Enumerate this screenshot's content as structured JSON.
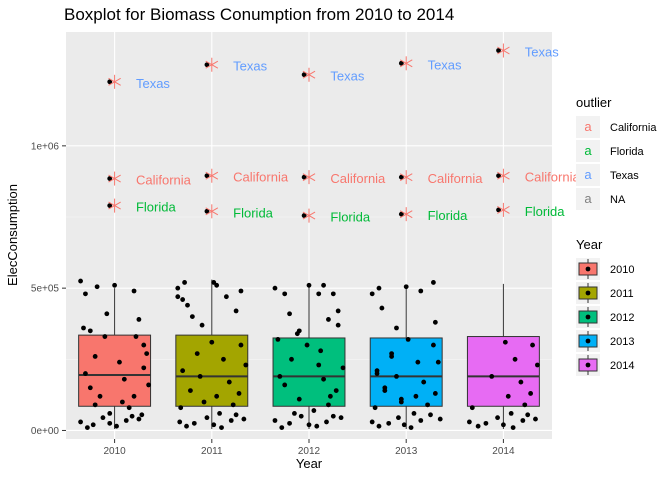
{
  "chart_data": {
    "type": "boxplot",
    "title": "Boxplot for Biomass Conumption from 2010 to 2014",
    "xlabel": "Year",
    "ylabel": "ElecConsumption",
    "categories": [
      "2010",
      "2011",
      "2012",
      "2013",
      "2014"
    ],
    "ylim": [
      -30000,
      1400000
    ],
    "yticks": [
      {
        "value": 0,
        "label": "0e+00"
      },
      {
        "value": 500000,
        "label": "5e+05"
      },
      {
        "value": 1000000,
        "label": "1e+06"
      }
    ],
    "fill_legend": {
      "title": "Year",
      "entries": [
        {
          "label": "2010",
          "color": "#F8766D"
        },
        {
          "label": "2011",
          "color": "#A3A500"
        },
        {
          "label": "2012",
          "color": "#00BF7D"
        },
        {
          "label": "2013",
          "color": "#00B0F6"
        },
        {
          "label": "2014",
          "color": "#E76BF3"
        }
      ]
    },
    "outlier_legend": {
      "title": "outlier",
      "entries": [
        {
          "label": "California",
          "color": "#F8766D",
          "key": "a"
        },
        {
          "label": "Florida",
          "color": "#00BA38",
          "key": "a"
        },
        {
          "label": "Texas",
          "color": "#619CFF",
          "key": "a"
        },
        {
          "label": "NA",
          "color": "#808080",
          "key": "a"
        }
      ]
    },
    "boxes": [
      {
        "year": "2010",
        "q1": 85000,
        "median": 195000,
        "q3": 335000,
        "whisker_low": 5000,
        "whisker_high": 500000
      },
      {
        "year": "2011",
        "q1": 85000,
        "median": 190000,
        "q3": 335000,
        "whisker_low": 5000,
        "whisker_high": 530000
      },
      {
        "year": "2012",
        "q1": 85000,
        "median": 190000,
        "q3": 325000,
        "whisker_low": 5000,
        "whisker_high": 510000
      },
      {
        "year": "2013",
        "q1": 85000,
        "median": 190000,
        "q3": 325000,
        "whisker_low": 5000,
        "whisker_high": 510000
      },
      {
        "year": "2014",
        "q1": 85000,
        "median": 190000,
        "q3": 330000,
        "whisker_low": 5000,
        "whisker_high": 515000
      }
    ],
    "outliers": [
      {
        "year": "2010",
        "state": "Texas",
        "value": 1225000
      },
      {
        "year": "2010",
        "state": "California",
        "value": 885000
      },
      {
        "year": "2010",
        "state": "Florida",
        "value": 790000
      },
      {
        "year": "2011",
        "state": "Texas",
        "value": 1285000
      },
      {
        "year": "2011",
        "state": "California",
        "value": 895000
      },
      {
        "year": "2011",
        "state": "Florida",
        "value": 770000
      },
      {
        "year": "2012",
        "state": "Texas",
        "value": 1250000
      },
      {
        "year": "2012",
        "state": "California",
        "value": 890000
      },
      {
        "year": "2012",
        "state": "Florida",
        "value": 755000
      },
      {
        "year": "2013",
        "state": "Texas",
        "value": 1290000
      },
      {
        "year": "2013",
        "state": "California",
        "value": 890000
      },
      {
        "year": "2013",
        "state": "Florida",
        "value": 760000
      },
      {
        "year": "2014",
        "state": "Texas",
        "value": 1335000
      },
      {
        "year": "2014",
        "state": "California",
        "value": 895000
      },
      {
        "year": "2014",
        "state": "Florida",
        "value": 775000
      }
    ],
    "outlier_labels": {
      "Texas": "Texas",
      "California": "California",
      "Florida": "Florida"
    },
    "jitter_points": [
      [
        -0.35,
        525000
      ],
      [
        -0.3,
        480000
      ],
      [
        -0.25,
        350000
      ],
      [
        -0.18,
        505000
      ],
      [
        0.0,
        510000
      ],
      [
        0.2,
        490000
      ],
      [
        0.25,
        390000
      ],
      [
        0.3,
        300000
      ],
      [
        -0.3,
        200000
      ],
      [
        -0.25,
        150000
      ],
      [
        -0.2,
        260000
      ],
      [
        -0.15,
        120000
      ],
      [
        -0.1,
        330000
      ],
      [
        -0.05,
        60000
      ],
      [
        0.05,
        240000
      ],
      [
        0.1,
        180000
      ],
      [
        0.15,
        80000
      ],
      [
        0.2,
        120000
      ],
      [
        0.25,
        40000
      ],
      [
        0.3,
        220000
      ],
      [
        0.35,
        160000
      ],
      [
        -0.35,
        30000
      ],
      [
        -0.28,
        10000
      ],
      [
        -0.22,
        20000
      ],
      [
        -0.12,
        45000
      ],
      [
        -0.05,
        25000
      ],
      [
        0.02,
        15000
      ],
      [
        0.12,
        35000
      ],
      [
        0.18,
        50000
      ],
      [
        0.28,
        55000
      ],
      [
        0.33,
        270000
      ],
      [
        -0.2,
        90000
      ],
      [
        0.08,
        100000
      ],
      [
        -0.32,
        360000
      ],
      [
        0.22,
        330000
      ],
      [
        -0.08,
        410000
      ],
      [
        -0.35,
        500000
      ],
      [
        -0.28,
        520000
      ],
      [
        -0.25,
        440000
      ],
      [
        0.05,
        510000
      ],
      [
        0.15,
        470000
      ],
      [
        0.3,
        490000
      ],
      [
        0.25,
        420000
      ],
      [
        -0.1,
        370000
      ],
      [
        -0.3,
        210000
      ],
      [
        -0.22,
        140000
      ],
      [
        -0.15,
        270000
      ],
      [
        -0.08,
        100000
      ],
      [
        0.0,
        310000
      ],
      [
        0.08,
        60000
      ],
      [
        0.12,
        250000
      ],
      [
        0.18,
        170000
      ],
      [
        0.22,
        90000
      ],
      [
        0.28,
        130000
      ],
      [
        0.33,
        40000
      ],
      [
        -0.33,
        30000
      ],
      [
        -0.26,
        15000
      ],
      [
        -0.18,
        25000
      ],
      [
        -0.05,
        45000
      ],
      [
        0.02,
        20000
      ],
      [
        0.1,
        10000
      ],
      [
        0.2,
        35000
      ],
      [
        0.25,
        55000
      ],
      [
        0.35,
        230000
      ],
      [
        -0.12,
        190000
      ],
      [
        0.05,
        120000
      ],
      [
        -0.32,
        80000
      ],
      [
        0.3,
        300000
      ],
      [
        -0.35,
        470000
      ],
      [
        -0.3,
        460000
      ],
      [
        -0.2,
        400000
      ],
      [
        0.02,
        520000
      ],
      [
        0.15,
        510000
      ],
      [
        0.25,
        480000
      ],
      [
        0.3,
        370000
      ],
      [
        -0.1,
        350000
      ],
      [
        -0.3,
        190000
      ],
      [
        -0.25,
        160000
      ],
      [
        -0.18,
        250000
      ],
      [
        -0.1,
        110000
      ],
      [
        -0.02,
        300000
      ],
      [
        0.05,
        70000
      ],
      [
        0.1,
        230000
      ],
      [
        0.15,
        180000
      ],
      [
        0.2,
        90000
      ],
      [
        0.28,
        140000
      ],
      [
        0.33,
        45000
      ],
      [
        -0.35,
        35000
      ],
      [
        -0.28,
        10000
      ],
      [
        -0.2,
        25000
      ],
      [
        -0.08,
        50000
      ],
      [
        0.0,
        20000
      ],
      [
        0.08,
        15000
      ],
      [
        0.18,
        30000
      ],
      [
        0.25,
        50000
      ],
      [
        0.35,
        220000
      ],
      [
        -0.15,
        60000
      ],
      [
        0.12,
        280000
      ],
      [
        -0.32,
        320000
      ],
      [
        0.22,
        120000
      ],
      [
        -0.35,
        500000
      ],
      [
        -0.25,
        480000
      ],
      [
        -0.2,
        410000
      ],
      [
        0.0,
        510000
      ],
      [
        0.1,
        480000
      ],
      [
        0.2,
        390000
      ],
      [
        0.3,
        420000
      ],
      [
        -0.12,
        340000
      ],
      [
        -0.3,
        200000
      ],
      [
        -0.22,
        150000
      ],
      [
        -0.15,
        260000
      ],
      [
        -0.05,
        110000
      ],
      [
        0.02,
        320000
      ],
      [
        0.08,
        60000
      ],
      [
        0.12,
        240000
      ],
      [
        0.18,
        170000
      ],
      [
        0.22,
        90000
      ],
      [
        0.3,
        130000
      ],
      [
        0.35,
        40000
      ],
      [
        -0.35,
        30000
      ],
      [
        -0.28,
        15000
      ],
      [
        -0.18,
        25000
      ],
      [
        -0.08,
        45000
      ],
      [
        -0.02,
        20000
      ],
      [
        0.05,
        10000
      ],
      [
        0.15,
        35000
      ],
      [
        0.25,
        55000
      ],
      [
        0.33,
        240000
      ],
      [
        -0.1,
        190000
      ],
      [
        0.1,
        120000
      ],
      [
        -0.32,
        80000
      ],
      [
        0.28,
        300000
      ],
      [
        -0.35,
        480000
      ],
      [
        -0.28,
        500000
      ],
      [
        -0.25,
        430000
      ],
      [
        0.0,
        505000
      ],
      [
        0.15,
        490000
      ],
      [
        0.28,
        520000
      ],
      [
        0.3,
        380000
      ],
      [
        -0.1,
        360000
      ],
      [
        -0.3,
        210000
      ],
      [
        -0.22,
        140000
      ],
      [
        -0.15,
        270000
      ],
      [
        -0.05,
        100000
      ],
      [
        0.02,
        310000
      ],
      [
        0.08,
        60000
      ],
      [
        0.12,
        250000
      ],
      [
        0.18,
        170000
      ],
      [
        0.22,
        90000
      ],
      [
        0.28,
        130000
      ],
      [
        0.33,
        40000
      ],
      [
        -0.35,
        30000
      ],
      [
        -0.26,
        15000
      ],
      [
        -0.18,
        25000
      ],
      [
        -0.06,
        45000
      ],
      [
        0.0,
        20000
      ],
      [
        0.1,
        10000
      ],
      [
        0.2,
        35000
      ],
      [
        0.25,
        55000
      ],
      [
        0.35,
        230000
      ],
      [
        -0.12,
        190000
      ],
      [
        0.05,
        120000
      ],
      [
        -0.32,
        80000
      ],
      [
        0.3,
        300000
      ]
    ]
  }
}
